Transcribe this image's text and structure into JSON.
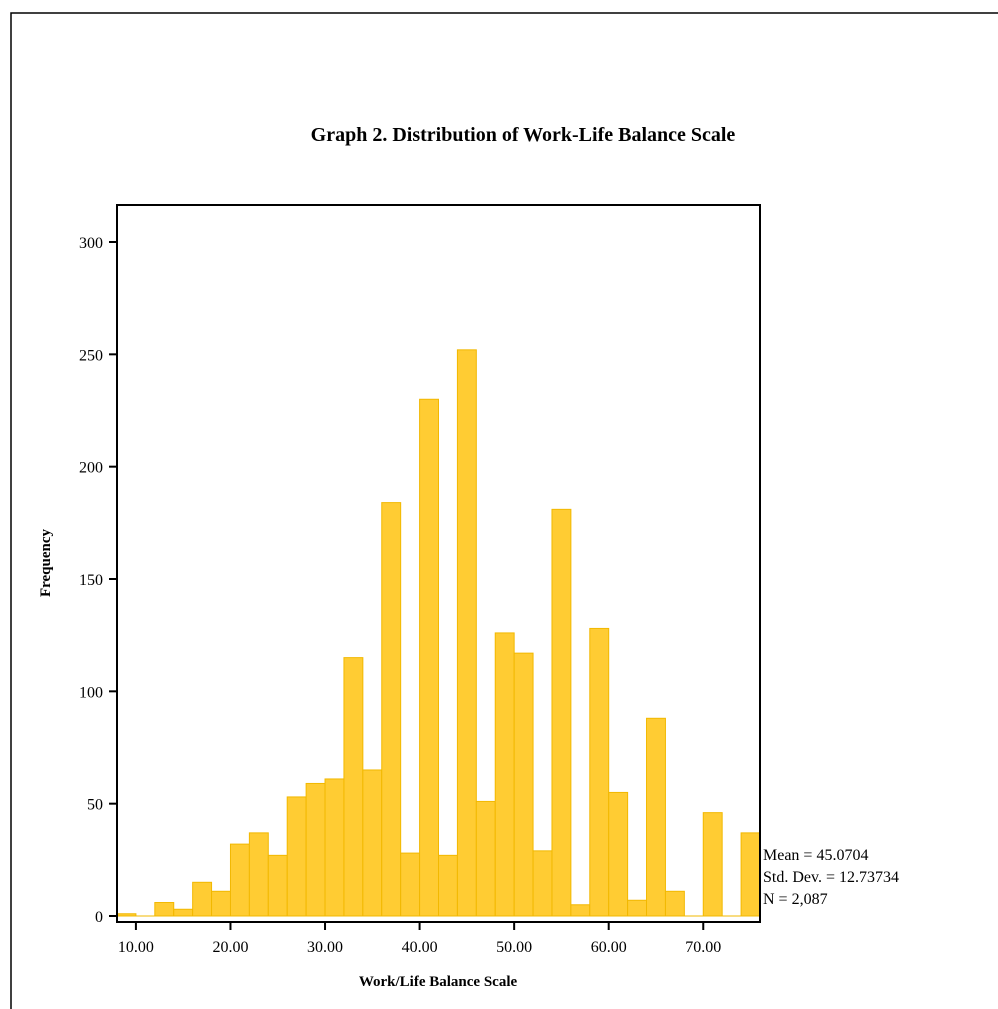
{
  "chart_data": {
    "type": "bar",
    "title": "Graph 2. Distribution of Work-Life Balance Scale",
    "xlabel": "Work/Life Balance Scale",
    "ylabel": "Frequency",
    "xlim": [
      8,
      76
    ],
    "ylim": [
      0,
      315
    ],
    "bin_width": 2,
    "x_ticks": [
      {
        "value": 10,
        "label": "10.00"
      },
      {
        "value": 20,
        "label": "20.00"
      },
      {
        "value": 30,
        "label": "30.00"
      },
      {
        "value": 40,
        "label": "40.00"
      },
      {
        "value": 50,
        "label": "50.00"
      },
      {
        "value": 60,
        "label": "60.00"
      },
      {
        "value": 70,
        "label": "70.00"
      }
    ],
    "y_ticks": [
      {
        "value": 0,
        "label": "0"
      },
      {
        "value": 50,
        "label": "50"
      },
      {
        "value": 100,
        "label": "100"
      },
      {
        "value": 150,
        "label": "150"
      },
      {
        "value": 200,
        "label": "200"
      },
      {
        "value": 250,
        "label": "250"
      },
      {
        "value": 300,
        "label": "300"
      }
    ],
    "bins": [
      {
        "start": 8,
        "value": 1
      },
      {
        "start": 10,
        "value": 0
      },
      {
        "start": 12,
        "value": 6
      },
      {
        "start": 14,
        "value": 3
      },
      {
        "start": 16,
        "value": 15
      },
      {
        "start": 18,
        "value": 11
      },
      {
        "start": 20,
        "value": 32
      },
      {
        "start": 22,
        "value": 37
      },
      {
        "start": 24,
        "value": 27
      },
      {
        "start": 26,
        "value": 53
      },
      {
        "start": 28,
        "value": 59
      },
      {
        "start": 30,
        "value": 61
      },
      {
        "start": 32,
        "value": 115
      },
      {
        "start": 34,
        "value": 65
      },
      {
        "start": 36,
        "value": 184
      },
      {
        "start": 38,
        "value": 28
      },
      {
        "start": 40,
        "value": 230
      },
      {
        "start": 42,
        "value": 27
      },
      {
        "start": 44,
        "value": 252
      },
      {
        "start": 46,
        "value": 51
      },
      {
        "start": 48,
        "value": 126
      },
      {
        "start": 50,
        "value": 117
      },
      {
        "start": 52,
        "value": 29
      },
      {
        "start": 54,
        "value": 181
      },
      {
        "start": 56,
        "value": 5
      },
      {
        "start": 58,
        "value": 128
      },
      {
        "start": 60,
        "value": 55
      },
      {
        "start": 62,
        "value": 7
      },
      {
        "start": 64,
        "value": 88
      },
      {
        "start": 66,
        "value": 11
      },
      {
        "start": 68,
        "value": 0
      },
      {
        "start": 70,
        "value": 46
      },
      {
        "start": 72,
        "value": 0
      },
      {
        "start": 74,
        "value": 37
      }
    ],
    "bar_color": "#FFCC33",
    "bar_edge_color": "#F2B800",
    "stats": {
      "mean": "Mean = 45.0704",
      "std_dev": "Std. Dev. = 12.73734",
      "n": "N = 2,087"
    },
    "grid": false
  }
}
